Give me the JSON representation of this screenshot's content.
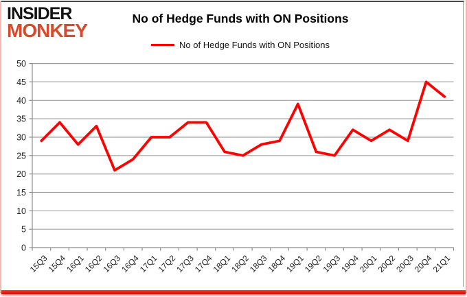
{
  "logo": {
    "line1": "INSIDER",
    "line2": "MONKEY"
  },
  "title": "No of Hedge Funds with ON Positions",
  "legend": {
    "series_label": "No of Hedge Funds with ON Positions"
  },
  "chart_data": {
    "type": "line",
    "title": "No of Hedge Funds with ON Positions",
    "categories": [
      "15Q3",
      "15Q4",
      "16Q1",
      "16Q2",
      "16Q3",
      "16Q4",
      "17Q1",
      "17Q2",
      "17Q3",
      "17Q4",
      "18Q1",
      "18Q2",
      "18Q3",
      "18Q4",
      "19Q1",
      "19Q2",
      "19Q3",
      "19Q4",
      "20Q1",
      "20Q2",
      "20Q3",
      "20Q4",
      "21Q1"
    ],
    "series": [
      {
        "name": "No of Hedge Funds with ON Positions",
        "color": "#fe0000",
        "values": [
          29,
          34,
          28,
          33,
          21,
          24,
          30,
          30,
          34,
          34,
          26,
          25,
          28,
          29,
          39,
          26,
          25,
          32,
          29,
          32,
          29,
          45,
          41
        ]
      }
    ],
    "ylim": [
      0,
      50
    ],
    "ytick_step": 5,
    "yticks": [
      0,
      5,
      10,
      15,
      20,
      25,
      30,
      35,
      40,
      45,
      50
    ],
    "grid": "horizontal",
    "legend_position": "top-center",
    "x_label_rotation": -45
  },
  "colors": {
    "series_line": "#fe0000",
    "logo_text": "#141414",
    "logo_accent": "#d84a2b",
    "grid_line": "#a0a0a0",
    "axis_line": "#8c8c8c",
    "axis_text": "#1f1f1f",
    "frame_pink": "#f3b7b0",
    "frame_top": "#4a4a4a",
    "frame_inner_right": "#9a9a9a",
    "bottom_bar": "#cf0c00"
  }
}
